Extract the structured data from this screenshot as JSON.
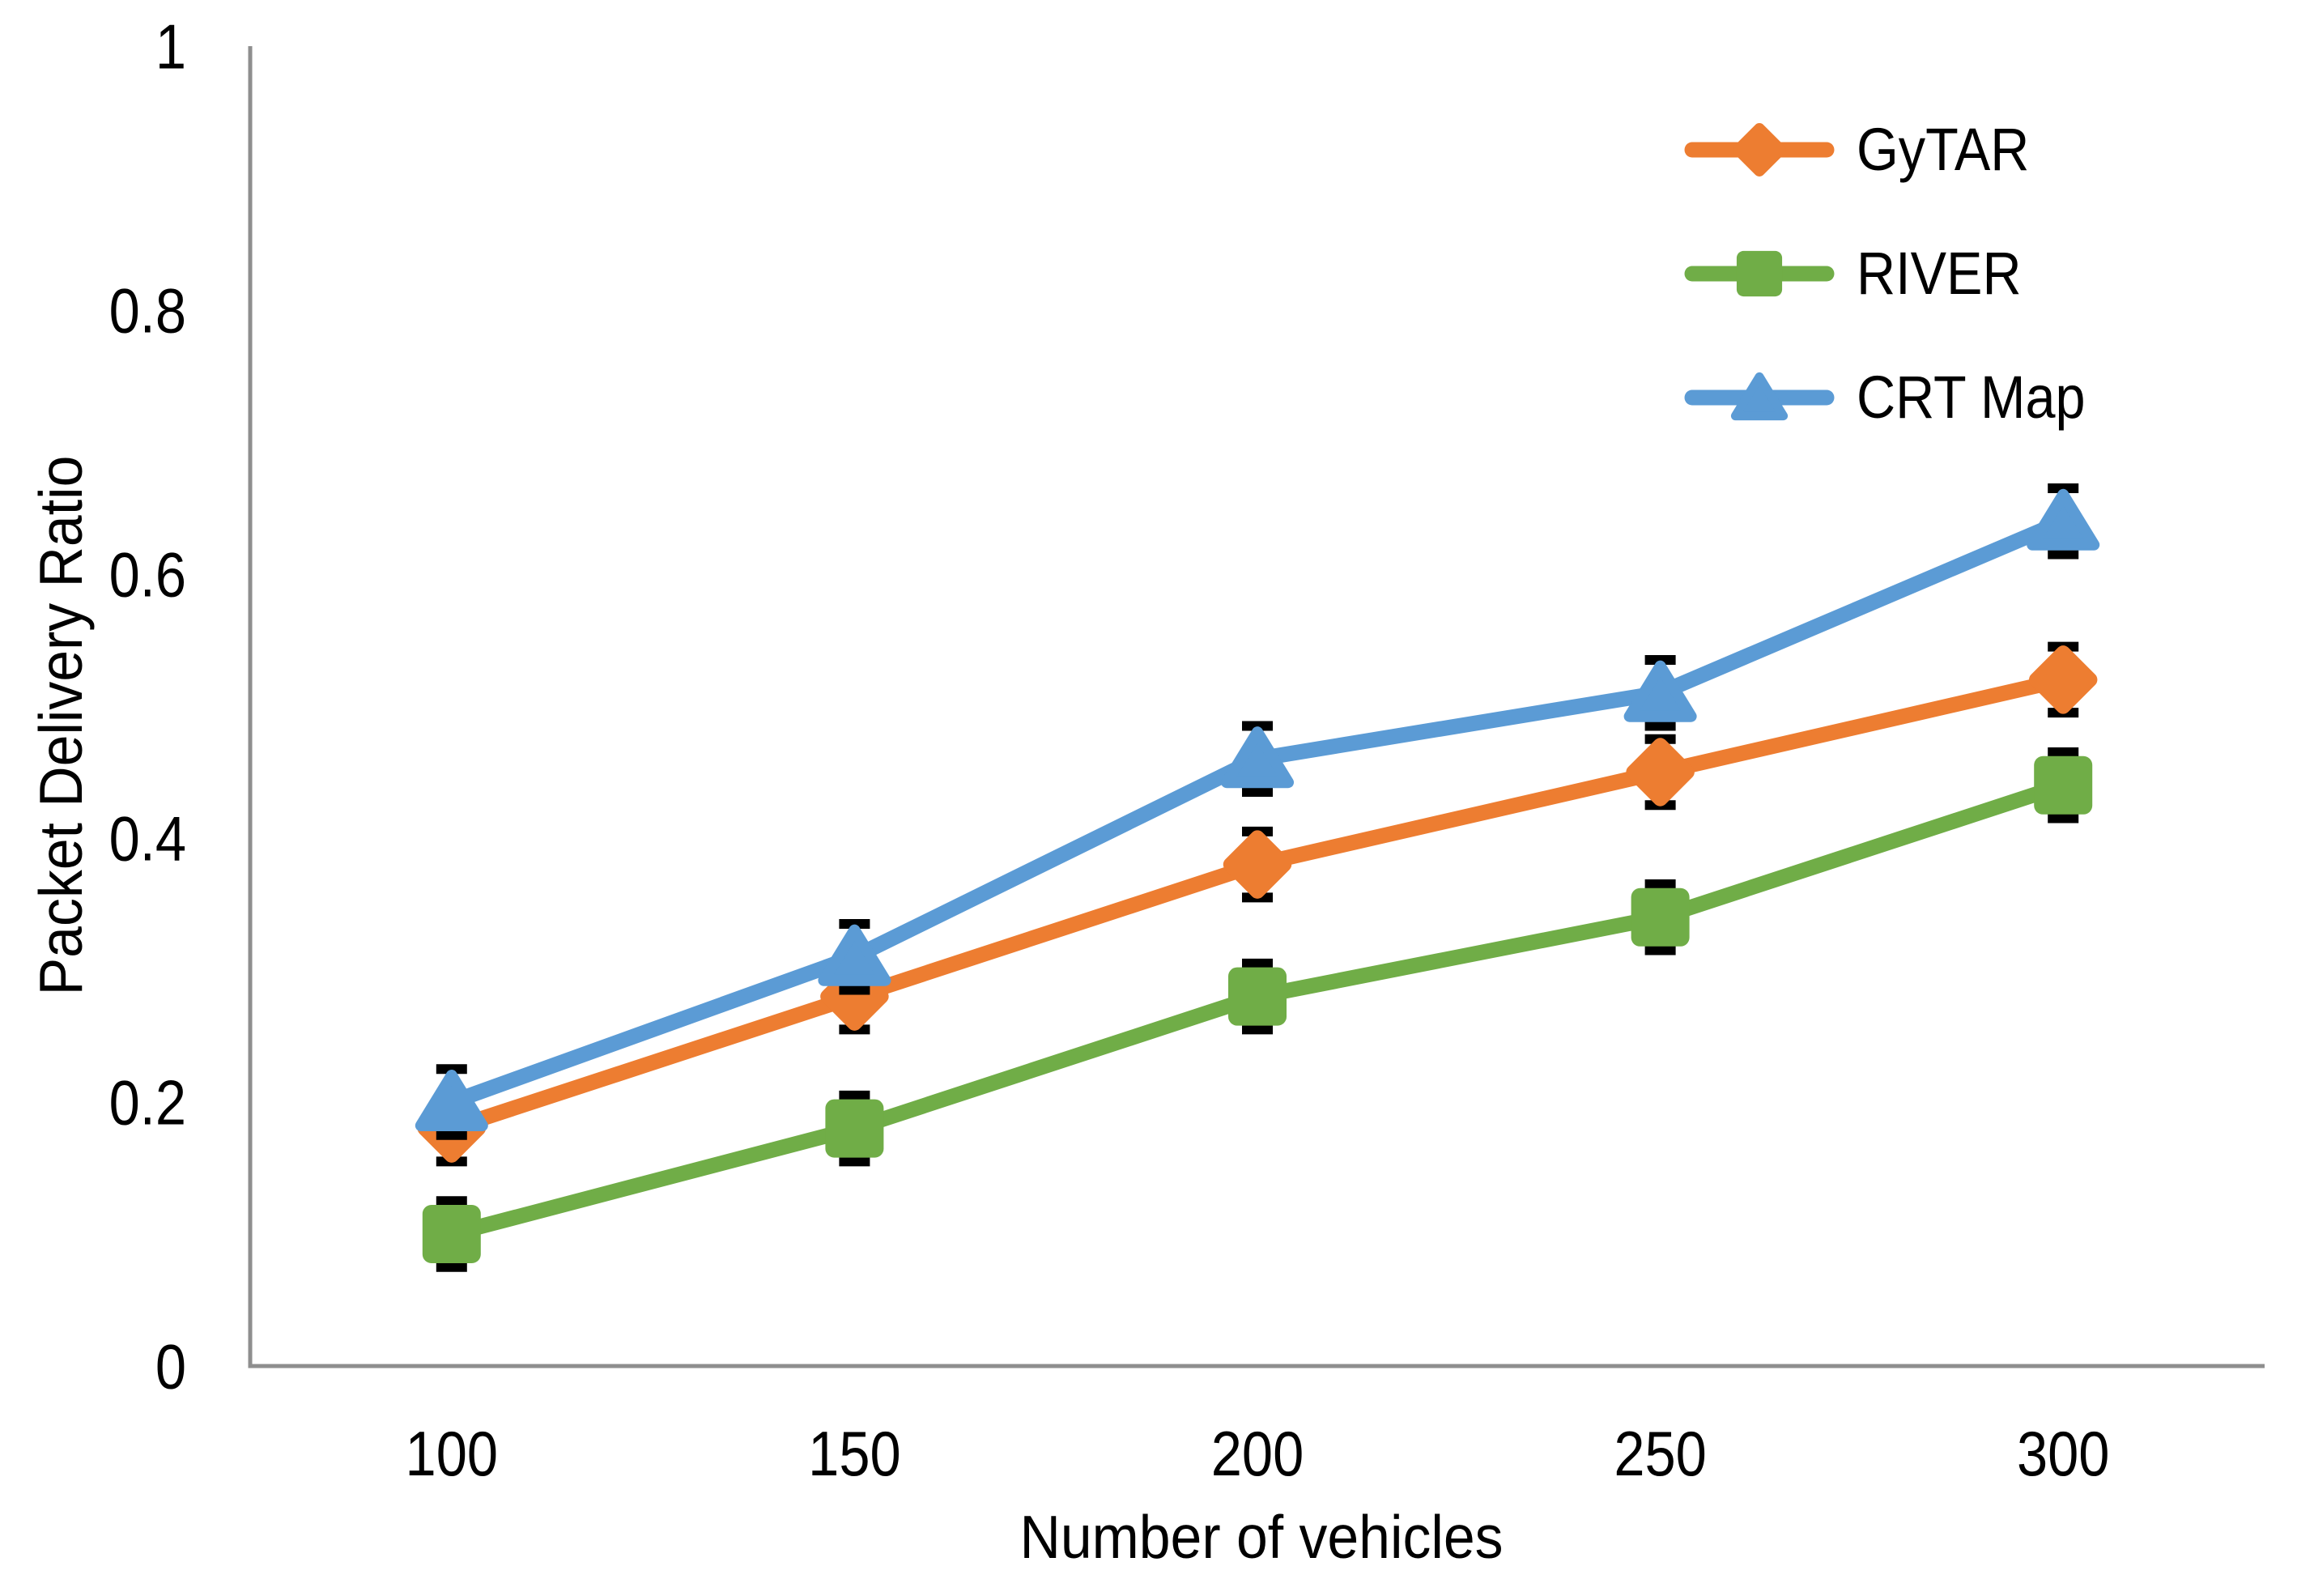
{
  "chart_data": {
    "type": "line",
    "title": "",
    "xlabel": "Number of vehicles",
    "ylabel": "Packet Delivery Ratio",
    "x": [
      100,
      150,
      200,
      250,
      300
    ],
    "x_tick_labels": [
      "100",
      "150",
      "200",
      "250",
      "300"
    ],
    "y_ticks": [
      {
        "value": 0,
        "label": "0"
      },
      {
        "value": 0.2,
        "label": "0.2"
      },
      {
        "value": 0.4,
        "label": "0.4"
      },
      {
        "value": 0.6,
        "label": "0.6"
      },
      {
        "value": 0.8,
        "label": "0.8"
      },
      {
        "value": 1,
        "label": "1"
      }
    ],
    "xlim": [
      75,
      325
    ],
    "ylim": [
      0,
      1
    ],
    "grid": false,
    "legend_position": "top-right",
    "error_bar": 0.025,
    "series": [
      {
        "name": "GyTAR",
        "marker": "diamond",
        "color": "#ED7D31",
        "values": [
          0.18,
          0.28,
          0.38,
          0.45,
          0.52
        ]
      },
      {
        "name": "RIVER",
        "marker": "square",
        "color": "#70AD47",
        "values": [
          0.1,
          0.18,
          0.28,
          0.34,
          0.44
        ]
      },
      {
        "name": "CRT Map",
        "marker": "triangle",
        "color": "#5B9BD5",
        "values": [
          0.2,
          0.31,
          0.46,
          0.51,
          0.64
        ]
      }
    ],
    "axis_color": "#8E8E8E",
    "error_bar_color": "#000000",
    "text_color": "#000000"
  }
}
